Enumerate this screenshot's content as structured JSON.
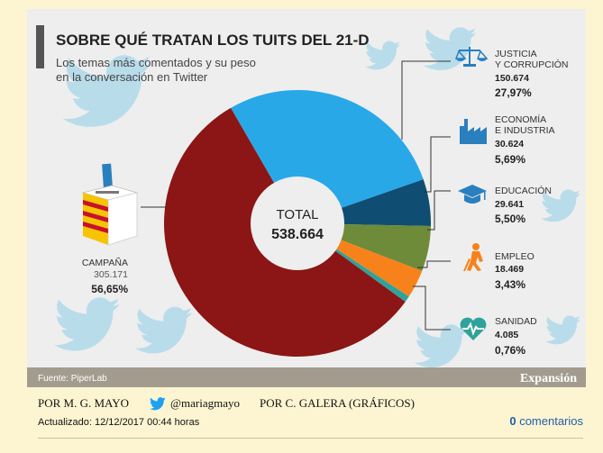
{
  "header": {
    "title": "SOBRE QUÉ TRATAN LOS TUITS DEL 21-D",
    "subtitle_line1": "Los temas más comentados y su peso",
    "subtitle_line2": "en la conversación en Twitter"
  },
  "chart_data": {
    "type": "pie",
    "donut": true,
    "center_label": "TOTAL",
    "center_value": "538.664",
    "slices": [
      {
        "label_line1": "JUSTICIA",
        "label_line2": "Y CORRUPCIÓN",
        "value": 150674,
        "value_text": "150.674",
        "percent": 27.97,
        "percent_text": "27,97%",
        "color": "#29a8e8",
        "icon": "scales-icon"
      },
      {
        "label_line1": "ECONOMÍA",
        "label_line2": "E INDUSTRIA",
        "value": 30624,
        "value_text": "30.624",
        "percent": 5.69,
        "percent_text": "5,69%",
        "color": "#0f4d73",
        "icon": "factory-icon"
      },
      {
        "label_line1": "EDUCACIÓN",
        "label_line2": "",
        "value": 29641,
        "value_text": "29.641",
        "percent": 5.5,
        "percent_text": "5,50%",
        "color": "#6e8b3a",
        "icon": "graduation-cap-icon"
      },
      {
        "label_line1": "EMPLEO",
        "label_line2": "",
        "value": 18469,
        "value_text": "18.469",
        "percent": 3.43,
        "percent_text": "3,43%",
        "color": "#f7821b",
        "icon": "worker-icon"
      },
      {
        "label_line1": "SANIDAD",
        "label_line2": "",
        "value": 4085,
        "value_text": "4.085",
        "percent": 0.76,
        "percent_text": "0,76%",
        "color": "#2fa39b",
        "icon": "heart-monitor-icon"
      },
      {
        "label_line1": "CAMPAÑA",
        "label_line2": "",
        "value": 305171,
        "value_text": "305.171",
        "percent": 56.65,
        "percent_text": "56,65%",
        "color": "#8c1515",
        "icon": "ballot-box-icon"
      }
    ]
  },
  "footer_bar": {
    "source": "Fuente: PiperLab",
    "brand": "Expansión"
  },
  "byline": {
    "author": "POR M. G. MAYO",
    "twitter_handle": "@mariagmayo",
    "graphics": "POR C. GALERA (GRÁFICOS)"
  },
  "updated": "Actualizado: 12/12/2017 00:44 horas",
  "comments": {
    "count": "0",
    "label": "comentarios"
  },
  "colors": {
    "background": "#fdf5d2",
    "panel": "#eeeeee",
    "accent_bar": "#555555",
    "footer_bar": "#a39c8e",
    "bird": "#b9dcea",
    "icon": "#2a7fbf",
    "twitter": "#1da1f2"
  }
}
